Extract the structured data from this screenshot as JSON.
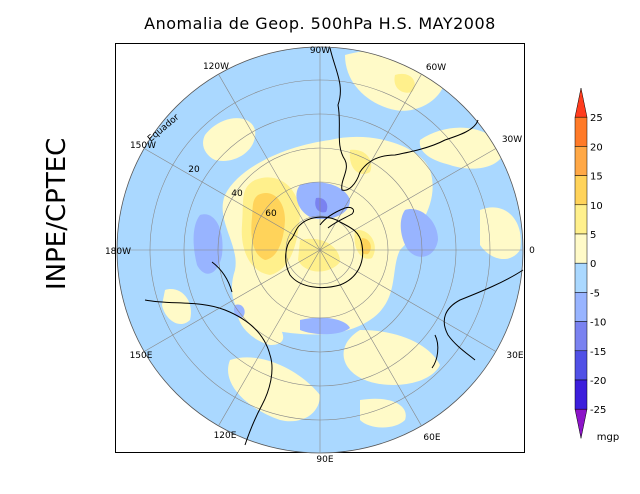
{
  "title": "Anomalia de Geop. 500hPa H.S. MAY2008",
  "side_label": "INPE/CPTEC",
  "map": {
    "longitude_labels": [
      "90W",
      "60W",
      "30W",
      "0",
      "30E",
      "60E",
      "90E",
      "120E",
      "150E",
      "180W",
      "150W",
      "120W"
    ],
    "latitude_labels": [
      "Equador",
      "20",
      "40",
      "60"
    ]
  },
  "colorbar": {
    "levels": [
      "25",
      "20",
      "15",
      "10",
      "5",
      "0",
      "-5",
      "-10",
      "-15",
      "-20",
      "-25"
    ],
    "unit": "mgp",
    "colors": [
      "#ff3c1e",
      "#ff7a28",
      "#ffa846",
      "#ffd35a",
      "#fff08c",
      "#fffac8",
      "#aad8ff",
      "#98b4ff",
      "#7a82f0",
      "#5050e6",
      "#3c1edc",
      "#8c14c8"
    ]
  }
}
